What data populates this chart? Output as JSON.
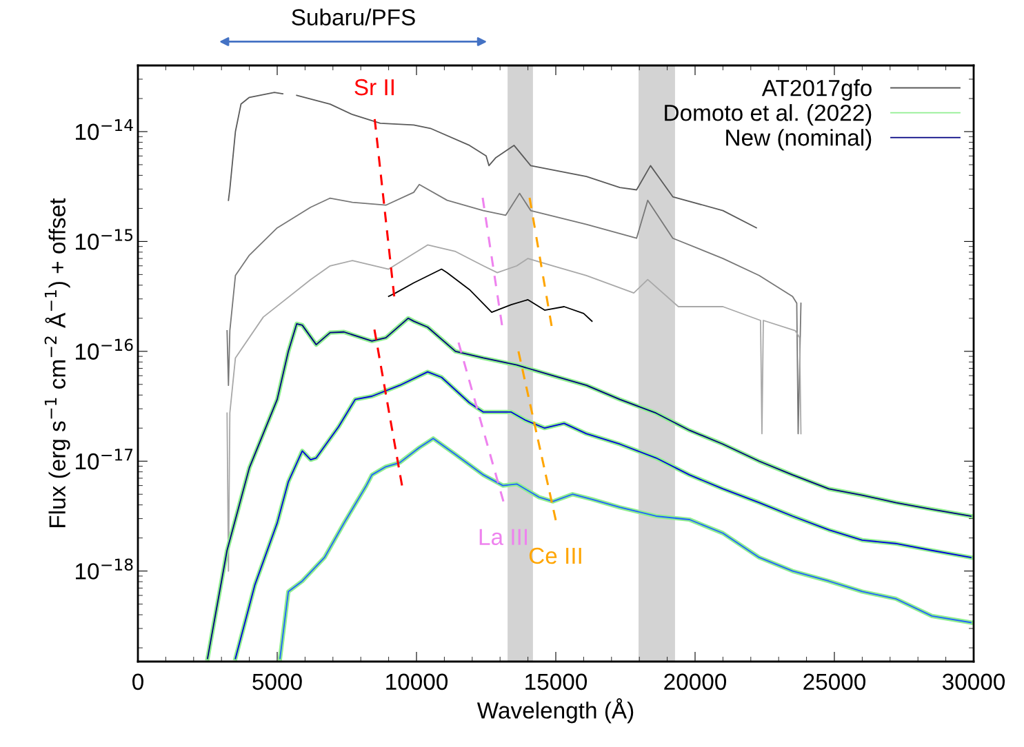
{
  "chart_data": {
    "type": "line",
    "xlabel": "Wavelength (Å)",
    "ylabel": "Flux (erg s$^{−1}$ cm$^{−2}$ Å$^{−1}$) + offset",
    "log": "y",
    "xlim": [
      0,
      30000
    ],
    "ylim": [
      1.5e-19,
      4e-14
    ],
    "xticks": [
      0,
      5000,
      10000,
      15000,
      20000,
      25000,
      30000
    ],
    "yticks": [
      {
        "value": 1e-18,
        "label": "10$^{−18}$"
      },
      {
        "value": 1e-17,
        "label": "10$^{−17}$"
      },
      {
        "value": 1e-16,
        "label": "10$^{−16}$"
      },
      {
        "value": 1e-15,
        "label": "10$^{−15}$"
      },
      {
        "value": 1e-14,
        "label": "10$^{−14}$"
      }
    ],
    "grid": false,
    "legend": "top right",
    "bands": [
      {
        "axis": "x",
        "from": 13270,
        "to": 14180,
        "color": "#d3d3d3"
      },
      {
        "axis": "x",
        "from": 17970,
        "to": 19280,
        "color": "#d3d3d3"
      }
    ],
    "annotations": [
      "Subaru/PFS",
      {
        "text": "Sr II",
        "x": 8500,
        "y": 1.3e-14
      },
      {
        "text": "La III",
        "x": 13120,
        "y": 4.3e-18
      },
      {
        "text": "Ce III",
        "x": 15000,
        "y": 2.9e-18
      }
    ],
    "series": [
      {
        "name": "AT2017gfo",
        "color": "#5a5a5a",
        "x": [
          3250,
          3300,
          3500,
          3700,
          4000,
          4900,
          5200,
          5450,
          5700,
          6900,
          7700,
          8700,
          9900,
          10500,
          11900,
          12500,
          12600,
          12850,
          13500,
          14100,
          16100,
          17300,
          17900,
          18400,
          19200,
          21000,
          22200
        ],
        "values": [
          2.37e-15,
          3e-15,
          1e-14,
          1.78e-14,
          2.05e-14,
          2.27e-14,
          2.21e-14,
          null,
          2.14e-14,
          1.78e-14,
          1.43e-14,
          1.19e-14,
          1.15e-14,
          1.07e-14,
          7.5e-15,
          6e-15,
          4.9e-15,
          5.8e-15,
          7.5e-15,
          4.9e-15,
          3.9e-15,
          3.1e-15,
          2.95e-15,
          4.9e-15,
          2.55e-15,
          1.91e-15,
          1.33e-15
        ]
      },
      {
        "color": "#777777",
        "x": [
          3200,
          3250,
          3300,
          3500,
          4000,
          5000,
          6200,
          6900,
          7700,
          8900,
          9900,
          10100,
          11100,
          12400,
          13200,
          13700,
          14100,
          16100,
          17900,
          18300,
          19200,
          21000,
          22300,
          23500,
          23650,
          23700,
          23800
        ],
        "values": [
          1.54e-16,
          4.9e-17,
          1.54e-16,
          4.9e-16,
          7.5e-16,
          1.33e-15,
          2.05e-15,
          2.48e-15,
          2.27e-15,
          2.14e-15,
          2.8e-15,
          3.3e-15,
          2.37e-15,
          1.91e-15,
          1.73e-15,
          2.74e-15,
          1.91e-15,
          1.43e-15,
          1.07e-15,
          2.37e-15,
          1.07e-15,
          7e-16,
          4.9e-16,
          3.16e-16,
          2.74e-16,
          1.78e-17,
          2.74e-16
        ]
      },
      {
        "color": "#a8a8a8",
        "x": [
          3200,
          3250,
          3300,
          3500,
          4500,
          6200,
          6900,
          7700,
          9000,
          10400,
          11400,
          12400,
          12900,
          13600,
          14000,
          14900,
          16100,
          17800,
          18300,
          19400,
          21000,
          22350,
          22400,
          22450,
          23600,
          23750,
          23800
        ],
        "values": [
          2.74e-17,
          1e-18,
          2.74e-17,
          8.7e-17,
          2.05e-16,
          4.5e-16,
          6e-16,
          6.7e-16,
          5.6e-16,
          9.3e-16,
          8.1e-16,
          6e-16,
          5.2e-16,
          6e-16,
          7e-16,
          6e-16,
          4.9e-16,
          3.4e-16,
          4.5e-16,
          2.55e-16,
          2.55e-16,
          1.91e-16,
          1.78e-17,
          1.91e-16,
          1.54e-16,
          1.33e-16,
          1.78e-17
        ]
      },
      {
        "color": "#000000",
        "x": [
          9000,
          9250,
          9900,
          10900,
          11100,
          11900,
          12700,
          13400,
          14000,
          14600,
          15300,
          16000,
          16300
        ],
        "values": [
          3.16e-16,
          3.4e-16,
          4.2e-16,
          5.6e-16,
          5.2e-16,
          3.65e-16,
          2.27e-16,
          2.66e-16,
          2.95e-16,
          2.37e-16,
          2.55e-16,
          2.21e-16,
          1.88e-16
        ]
      },
      {
        "name": "Domoto et al. (2022)",
        "color": "#90ee90",
        "x": [
          2500,
          3200,
          4000,
          5000,
          5400,
          5700,
          5900,
          6400,
          6900,
          7400,
          8400,
          8900,
          9700,
          9900,
          10400,
          11400,
          12400,
          13600,
          14900,
          16100,
          17300,
          18600,
          19800,
          21000,
          22300,
          23500,
          24800,
          26000,
          27200,
          28500,
          29900
        ],
        "values": [
          1.6e-19,
          1.54e-18,
          8.7e-18,
          3.65e-17,
          1e-16,
          1.78e-16,
          1.73e-16,
          1.15e-16,
          1.48e-16,
          1.5e-16,
          1.24e-16,
          1.33e-16,
          2e-16,
          1.88e-16,
          1.66e-16,
          1e-16,
          8.7e-17,
          7.5e-17,
          6e-17,
          4.9e-17,
          3.65e-17,
          2.74e-17,
          1.91e-17,
          1.43e-17,
          1e-17,
          7.5e-18,
          5.6e-18,
          4.9e-18,
          4.2e-18,
          3.65e-18,
          3.16e-18
        ]
      },
      {
        "color": "#90ee90",
        "x": [
          3500,
          4200,
          5000,
          5400,
          5900,
          6200,
          6400,
          7200,
          7800,
          8400,
          9400,
          10400,
          10900,
          11900,
          12400,
          13400,
          13900,
          14600,
          15300,
          16100,
          17300,
          18600,
          19800,
          21000,
          22300,
          23500,
          24800,
          26000,
          27200,
          28500,
          29900
        ],
        "values": [
          1.6e-19,
          7.5e-19,
          2.74e-18,
          6.5e-18,
          1.24e-17,
          1.03e-17,
          1.07e-17,
          2.05e-17,
          3.65e-17,
          3.9e-17,
          4.9e-17,
          6.5e-17,
          5.8e-17,
          3.4e-17,
          2.8e-17,
          2.8e-17,
          2.37e-17,
          2e-17,
          2.21e-17,
          1.78e-17,
          1.43e-17,
          1.07e-17,
          7.5e-18,
          5.6e-18,
          4.2e-18,
          3.16e-18,
          2.37e-18,
          1.91e-18,
          1.78e-18,
          1.54e-18,
          1.33e-18
        ]
      },
      {
        "color": "#90ee90",
        "x": [
          5100,
          5400,
          5900,
          6700,
          7400,
          8200,
          8400,
          8900,
          9400,
          10100,
          10600,
          11400,
          12400,
          13100,
          13600,
          14400,
          14900,
          15600,
          16300,
          17300,
          18600,
          19800,
          21000,
          22300,
          23500,
          24800,
          26000,
          27200,
          28500,
          29900
        ],
        "values": [
          1.6e-19,
          6.5e-19,
          8.1e-19,
          1.33e-18,
          2.74e-18,
          6e-18,
          7.5e-18,
          8.9e-18,
          9.7e-18,
          1.33e-17,
          1.61e-17,
          1.15e-17,
          7.5e-18,
          6e-18,
          6.2e-18,
          4.7e-18,
          4.3e-18,
          5e-18,
          4.5e-18,
          3.8e-18,
          3.16e-18,
          2.94e-18,
          2.21e-18,
          1.33e-18,
          1e-18,
          8.1e-19,
          6.5e-19,
          5.6e-19,
          3.9e-19,
          3.4e-19
        ]
      },
      {
        "name": "New (nominal)",
        "color": "#000080",
        "x": [
          2500,
          3200,
          4000,
          5000,
          5400,
          5700,
          5900,
          6400,
          6900,
          7400,
          8400,
          8900,
          9700,
          9900,
          10400,
          11400,
          12400,
          13600,
          14900,
          16100,
          17300,
          18600,
          19800,
          21000,
          22300,
          23500,
          24800,
          26000,
          27200,
          28500,
          29900
        ],
        "values": [
          1.6e-19,
          1.54e-18,
          8.7e-18,
          3.65e-17,
          1e-16,
          1.78e-16,
          1.73e-16,
          1.15e-16,
          1.48e-16,
          1.5e-16,
          1.24e-16,
          1.33e-16,
          2e-16,
          1.88e-16,
          1.66e-16,
          1e-16,
          8.7e-17,
          7.5e-17,
          6e-17,
          4.9e-17,
          3.65e-17,
          2.74e-17,
          1.91e-17,
          1.43e-17,
          1e-17,
          7.5e-18,
          5.6e-18,
          4.9e-18,
          4.2e-18,
          3.65e-18,
          3.16e-18
        ]
      },
      {
        "color": "#0000dd",
        "x": [
          3500,
          4200,
          5000,
          5400,
          5900,
          6200,
          6400,
          7200,
          7800,
          8400,
          9400,
          10400,
          10900,
          11900,
          12400,
          13400,
          13900,
          14600,
          15300,
          16100,
          17300,
          18600,
          19800,
          21000,
          22300,
          23500,
          24800,
          26000,
          27200,
          28500,
          29900
        ],
        "values": [
          1.6e-19,
          7.5e-19,
          2.74e-18,
          6.5e-18,
          1.24e-17,
          1.03e-17,
          1.07e-17,
          2.05e-17,
          3.65e-17,
          3.9e-17,
          4.9e-17,
          6.5e-17,
          5.8e-17,
          3.4e-17,
          2.8e-17,
          2.8e-17,
          2.37e-17,
          2e-17,
          2.21e-17,
          1.78e-17,
          1.43e-17,
          1.07e-17,
          7.5e-18,
          5.6e-18,
          4.2e-18,
          3.16e-18,
          2.37e-18,
          1.91e-18,
          1.78e-18,
          1.54e-18,
          1.33e-18
        ]
      },
      {
        "color": "#2060ff",
        "x": [
          5100,
          5400,
          5900,
          6700,
          7400,
          8200,
          8400,
          8900,
          9400,
          10100,
          10600,
          11400,
          12400,
          13100,
          13600,
          14400,
          14900,
          15600,
          16300,
          17300,
          18600,
          19800,
          21000,
          22300,
          23500,
          24800,
          26000,
          27200,
          28500,
          29900
        ],
        "values": [
          1.6e-19,
          6.5e-19,
          8.1e-19,
          1.33e-18,
          2.74e-18,
          6e-18,
          7.5e-18,
          8.9e-18,
          9.7e-18,
          1.33e-17,
          1.61e-17,
          1.15e-17,
          7.5e-18,
          6e-18,
          6.2e-18,
          4.7e-18,
          4.3e-18,
          5e-18,
          4.5e-18,
          3.8e-18,
          3.16e-18,
          2.94e-18,
          2.21e-18,
          1.33e-18,
          1e-18,
          8.1e-19,
          6.5e-19,
          5.6e-19,
          3.9e-19,
          3.4e-19
        ]
      },
      {
        "color": "#ff0000",
        "line_style": "dashed",
        "x": [
          8500,
          9200
        ],
        "values": [
          1.3e-14,
          3.16e-16
        ]
      },
      {
        "color": "#ee82ee",
        "line_style": "dashed",
        "x": [
          12375,
          13070
        ],
        "values": [
          2.5e-15,
          1.73e-16
        ]
      },
      {
        "color": "#ffa500",
        "line_style": "dashed",
        "x": [
          14060,
          14850
        ],
        "values": [
          2.5e-15,
          1.7e-16
        ]
      },
      {
        "color": "#ff0000",
        "line_style": "dashed",
        "x": [
          8490,
          9480
        ],
        "values": [
          1.58e-16,
          6e-18
        ]
      },
      {
        "color": "#ee82ee",
        "line_style": "dashed",
        "x": [
          11510,
          13120
        ],
        "values": [
          1.2e-16,
          4.3e-18
        ]
      },
      {
        "color": "#ffa500",
        "line_style": "dashed",
        "x": [
          13660,
          15000
        ],
        "values": [
          1e-16,
          2.9e-18
        ]
      }
    ]
  }
}
